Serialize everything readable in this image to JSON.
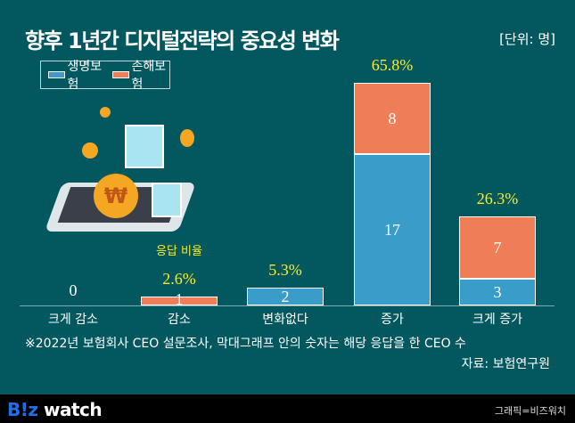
{
  "title": "향후 1년간 디지털전략의 중요성 변화",
  "unit": "[단위: 명]",
  "colors": {
    "life": "#3a9cc8",
    "nonlife": "#ef7d58",
    "pct": "#ffec1a",
    "background": "#03585f"
  },
  "chart_data": {
    "type": "bar",
    "stacked": true,
    "title": "향후 1년간 디지털전략의 중요성 변화",
    "categories": [
      "크게 감소",
      "감소",
      "변화없다",
      "증가",
      "크게 증가"
    ],
    "series": [
      {
        "name": "생명보험",
        "values": [
          0,
          0,
          2,
          17,
          3
        ]
      },
      {
        "name": "손해보험",
        "values": [
          0,
          1,
          0,
          8,
          7
        ]
      }
    ],
    "totals_label": [
      "0",
      "1",
      "2",
      "",
      ""
    ],
    "percent_labels": [
      "",
      "2.6%",
      "5.3%",
      "65.8%",
      "26.3%"
    ],
    "percent_caption": "응답 비율",
    "legend": [
      "생명보험",
      "손해보험"
    ],
    "legend_position": "top-left",
    "ylim": [
      0,
      25
    ],
    "grid": false
  },
  "note": "※2022년 보험회사 CEO 설문조사, 막대그래프 안의 숫자는 해당 응답을 한 CEO 수",
  "source": "자료: 보험연구원",
  "footer": {
    "logo": "B!z watch",
    "credit": "그래픽=비즈워치"
  }
}
